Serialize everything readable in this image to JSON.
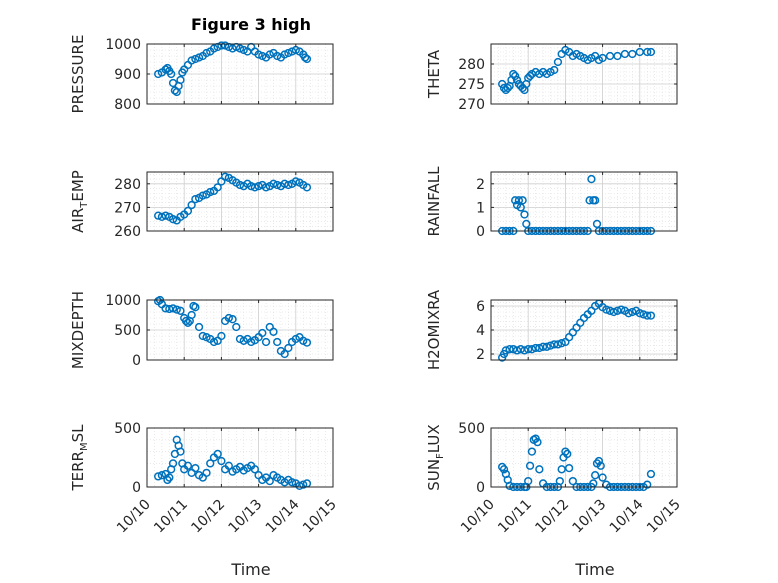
{
  "figure": {
    "title": "Figure 3 high",
    "xlabel": "Time",
    "x_ticks": [
      "10/10",
      "10/11",
      "10/12",
      "10/13",
      "10/14",
      "10/15"
    ],
    "marker_color": "#0072bd"
  },
  "chart_data": [
    {
      "type": "scatter",
      "ylabel": "PRESSURE",
      "ylim": [
        800,
        1000
      ],
      "yticks": [
        800,
        900,
        1000
      ],
      "grid": true,
      "xlim": [
        0,
        5
      ],
      "x": [
        0.3,
        0.4,
        0.5,
        0.55,
        0.6,
        0.65,
        0.7,
        0.75,
        0.8,
        0.85,
        0.9,
        0.95,
        1.0,
        1.1,
        1.2,
        1.3,
        1.4,
        1.5,
        1.6,
        1.7,
        1.8,
        1.9,
        2.0,
        2.1,
        2.2,
        2.3,
        2.4,
        2.5,
        2.6,
        2.7,
        2.8,
        2.9,
        3.0,
        3.1,
        3.2,
        3.3,
        3.4,
        3.5,
        3.6,
        3.7,
        3.8,
        3.9,
        4.0,
        4.1,
        4.2,
        4.25,
        4.3
      ],
      "y": [
        900,
        905,
        915,
        920,
        910,
        900,
        870,
        845,
        840,
        860,
        880,
        905,
        915,
        930,
        945,
        950,
        955,
        960,
        970,
        975,
        985,
        990,
        995,
        995,
        990,
        985,
        990,
        985,
        980,
        975,
        990,
        975,
        965,
        960,
        955,
        965,
        970,
        960,
        955,
        965,
        970,
        975,
        980,
        975,
        965,
        955,
        950
      ]
    },
    {
      "type": "scatter",
      "ylabel": "THETA",
      "ylim": [
        270,
        285
      ],
      "yticks": [
        270,
        275,
        280
      ],
      "grid": true,
      "xlim": [
        0,
        5
      ],
      "x": [
        0.3,
        0.35,
        0.4,
        0.45,
        0.5,
        0.55,
        0.6,
        0.65,
        0.7,
        0.75,
        0.8,
        0.85,
        0.9,
        0.95,
        1.0,
        1.05,
        1.1,
        1.2,
        1.3,
        1.4,
        1.5,
        1.6,
        1.7,
        1.8,
        1.9,
        2.0,
        2.1,
        2.2,
        2.3,
        2.4,
        2.5,
        2.6,
        2.7,
        2.8,
        2.9,
        3.0,
        3.2,
        3.4,
        3.6,
        3.8,
        4.0,
        4.2,
        4.3
      ],
      "y": [
        275,
        274,
        273.5,
        274,
        274.5,
        276,
        277.5,
        277,
        276,
        275,
        274.5,
        274,
        273.5,
        275,
        276.5,
        277,
        277.5,
        278,
        277.5,
        278,
        277.5,
        278,
        278.5,
        280.5,
        282.5,
        283.5,
        283,
        282,
        282.5,
        282,
        281.5,
        281,
        281.5,
        282,
        281,
        281.5,
        282,
        282,
        282.5,
        282.5,
        283,
        283,
        283
      ]
    },
    {
      "type": "scatter",
      "ylabel": "AIR_TEMP",
      "ylim": [
        260,
        285
      ],
      "yticks": [
        260,
        270,
        280
      ],
      "grid": true,
      "xlim": [
        0,
        5
      ],
      "x": [
        0.3,
        0.4,
        0.5,
        0.6,
        0.7,
        0.8,
        0.9,
        1.0,
        1.1,
        1.2,
        1.3,
        1.4,
        1.5,
        1.6,
        1.7,
        1.8,
        1.9,
        2.0,
        2.1,
        2.2,
        2.3,
        2.4,
        2.5,
        2.6,
        2.7,
        2.8,
        2.9,
        3.0,
        3.1,
        3.2,
        3.3,
        3.4,
        3.5,
        3.6,
        3.7,
        3.8,
        3.9,
        4.0,
        4.1,
        4.2,
        4.3
      ],
      "y": [
        266.5,
        266,
        266.5,
        266,
        265,
        264.5,
        266,
        267,
        268.5,
        271,
        273.5,
        274,
        275,
        275.5,
        276.5,
        277,
        278.5,
        281,
        283,
        282.5,
        281.5,
        280.5,
        279.5,
        279,
        280,
        279,
        278.5,
        279,
        279.5,
        278.5,
        279,
        280,
        279.5,
        279,
        280,
        279.5,
        280,
        281,
        280.5,
        279.5,
        278.5
      ]
    },
    {
      "type": "scatter",
      "ylabel": "RAINFALL",
      "ylim": [
        0,
        2.5
      ],
      "yticks": [
        0,
        1,
        2
      ],
      "grid": true,
      "xlim": [
        0,
        5
      ],
      "x": [
        0.3,
        0.4,
        0.5,
        0.6,
        0.65,
        0.7,
        0.75,
        0.8,
        0.85,
        0.9,
        0.95,
        1.0,
        1.1,
        1.2,
        1.3,
        1.4,
        1.5,
        1.6,
        1.7,
        1.8,
        1.9,
        2.0,
        2.1,
        2.2,
        2.3,
        2.4,
        2.5,
        2.6,
        2.65,
        2.7,
        2.75,
        2.8,
        2.85,
        2.9,
        3.0,
        3.1,
        3.2,
        3.3,
        3.4,
        3.5,
        3.6,
        3.7,
        3.8,
        3.9,
        4.0,
        4.1,
        4.2,
        4.3
      ],
      "y": [
        0,
        0,
        0,
        0,
        1.3,
        1.1,
        1.3,
        1.0,
        1.3,
        0.7,
        0.3,
        0,
        0,
        0,
        0,
        0,
        0,
        0,
        0,
        0,
        0,
        0,
        0,
        0,
        0,
        0,
        0,
        0,
        1.3,
        2.2,
        1.3,
        1.3,
        0.3,
        0,
        0,
        0,
        0,
        0,
        0,
        0,
        0,
        0,
        0,
        0,
        0,
        0,
        0,
        0
      ]
    },
    {
      "type": "scatter",
      "ylabel": "MIXDEPTH",
      "ylim": [
        0,
        1000
      ],
      "yticks": [
        0,
        500,
        1000
      ],
      "grid": true,
      "xlim": [
        0,
        5
      ],
      "x": [
        0.3,
        0.35,
        0.4,
        0.5,
        0.6,
        0.7,
        0.8,
        0.9,
        1.0,
        1.05,
        1.1,
        1.15,
        1.2,
        1.25,
        1.3,
        1.4,
        1.5,
        1.6,
        1.7,
        1.8,
        1.9,
        2.0,
        2.1,
        2.2,
        2.3,
        2.4,
        2.5,
        2.6,
        2.7,
        2.8,
        2.9,
        3.0,
        3.1,
        3.2,
        3.3,
        3.4,
        3.5,
        3.6,
        3.7,
        3.8,
        3.9,
        4.0,
        4.1,
        4.2,
        4.3
      ],
      "y": [
        980,
        1000,
        930,
        860,
        850,
        860,
        840,
        820,
        700,
        650,
        620,
        650,
        750,
        900,
        880,
        550,
        400,
        380,
        350,
        300,
        320,
        400,
        650,
        700,
        680,
        550,
        350,
        320,
        350,
        300,
        330,
        380,
        450,
        300,
        550,
        470,
        300,
        150,
        100,
        200,
        300,
        350,
        380,
        320,
        290
      ]
    },
    {
      "type": "scatter",
      "ylabel": "H2OMIXRA",
      "ylim": [
        1.5,
        6.5
      ],
      "yticks": [
        2,
        4,
        6
      ],
      "grid": true,
      "xlim": [
        0,
        5
      ],
      "x": [
        0.3,
        0.35,
        0.4,
        0.5,
        0.6,
        0.7,
        0.8,
        0.9,
        1.0,
        1.1,
        1.2,
        1.3,
        1.4,
        1.5,
        1.6,
        1.7,
        1.8,
        1.9,
        2.0,
        2.1,
        2.2,
        2.3,
        2.4,
        2.5,
        2.6,
        2.7,
        2.8,
        2.9,
        3.0,
        3.1,
        3.2,
        3.3,
        3.4,
        3.5,
        3.6,
        3.7,
        3.8,
        3.9,
        4.0,
        4.1,
        4.2,
        4.3
      ],
      "y": [
        1.7,
        2.0,
        2.3,
        2.4,
        2.4,
        2.3,
        2.4,
        2.3,
        2.4,
        2.4,
        2.5,
        2.5,
        2.6,
        2.6,
        2.7,
        2.8,
        2.8,
        2.9,
        3.0,
        3.4,
        3.8,
        4.2,
        4.6,
        5.0,
        5.3,
        5.6,
        6.0,
        6.2,
        5.9,
        5.7,
        5.6,
        5.5,
        5.6,
        5.7,
        5.6,
        5.4,
        5.5,
        5.6,
        5.4,
        5.3,
        5.2,
        5.2
      ]
    },
    {
      "type": "scatter",
      "ylabel": "TERR_MSL",
      "ylim": [
        0,
        500
      ],
      "yticks": [
        0,
        500
      ],
      "grid": true,
      "xlim": [
        0,
        5
      ],
      "x": [
        0.3,
        0.4,
        0.5,
        0.55,
        0.6,
        0.65,
        0.7,
        0.75,
        0.8,
        0.85,
        0.9,
        0.95,
        1.0,
        1.1,
        1.2,
        1.3,
        1.4,
        1.5,
        1.6,
        1.7,
        1.8,
        1.9,
        2.0,
        2.1,
        2.2,
        2.3,
        2.4,
        2.5,
        2.6,
        2.7,
        2.8,
        2.9,
        3.0,
        3.1,
        3.2,
        3.3,
        3.4,
        3.5,
        3.6,
        3.7,
        3.8,
        3.9,
        4.0,
        4.1,
        4.2,
        4.3
      ],
      "y": [
        90,
        100,
        110,
        60,
        80,
        150,
        200,
        280,
        400,
        350,
        300,
        200,
        150,
        180,
        120,
        160,
        100,
        80,
        120,
        200,
        250,
        280,
        220,
        150,
        180,
        130,
        150,
        170,
        140,
        160,
        180,
        150,
        100,
        60,
        80,
        50,
        100,
        80,
        60,
        40,
        60,
        40,
        30,
        10,
        20,
        30
      ]
    },
    {
      "type": "scatter",
      "ylabel": "SUN_FLUX",
      "ylim": [
        0,
        500
      ],
      "yticks": [
        0,
        500
      ],
      "grid": true,
      "xlim": [
        0,
        5
      ],
      "x": [
        0.3,
        0.35,
        0.4,
        0.45,
        0.5,
        0.6,
        0.7,
        0.8,
        0.9,
        0.95,
        1.0,
        1.05,
        1.1,
        1.15,
        1.2,
        1.25,
        1.3,
        1.4,
        1.5,
        1.6,
        1.7,
        1.8,
        1.85,
        1.9,
        1.95,
        2.0,
        2.05,
        2.1,
        2.2,
        2.3,
        2.4,
        2.5,
        2.6,
        2.7,
        2.75,
        2.8,
        2.85,
        2.9,
        2.95,
        3.0,
        3.1,
        3.2,
        3.3,
        3.4,
        3.5,
        3.6,
        3.7,
        3.8,
        3.9,
        4.0,
        4.1,
        4.2,
        4.3
      ],
      "y": [
        170,
        150,
        110,
        60,
        10,
        0,
        0,
        0,
        0,
        0,
        50,
        180,
        300,
        400,
        410,
        380,
        150,
        30,
        0,
        0,
        0,
        0,
        50,
        150,
        250,
        300,
        280,
        160,
        50,
        0,
        0,
        0,
        0,
        0,
        30,
        100,
        200,
        220,
        180,
        80,
        20,
        0,
        0,
        0,
        0,
        0,
        0,
        0,
        0,
        0,
        0,
        20,
        110
      ]
    }
  ]
}
